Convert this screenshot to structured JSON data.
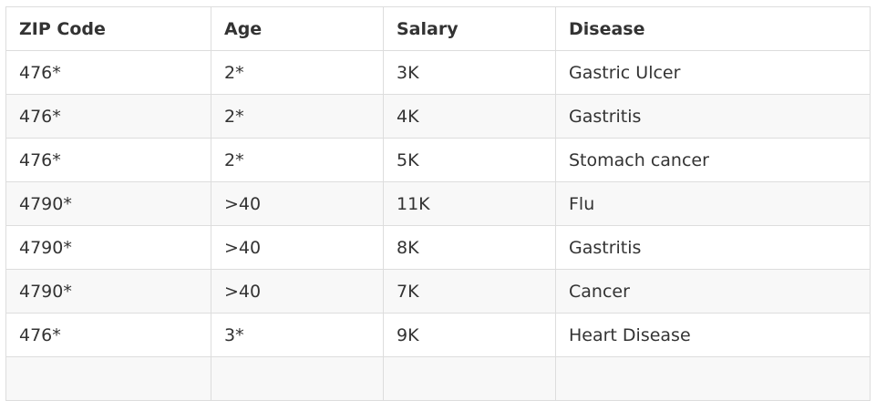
{
  "table": {
    "headers": [
      "ZIP Code",
      "Age",
      "Salary",
      "Disease"
    ],
    "rows": [
      [
        "476*",
        "2*",
        "3K",
        "Gastric Ulcer"
      ],
      [
        "476*",
        "2*",
        "4K",
        "Gastritis"
      ],
      [
        "476*",
        "2*",
        "5K",
        "Stomach cancer"
      ],
      [
        "4790*",
        ">40",
        "11K",
        "Flu"
      ],
      [
        "4790*",
        ">40",
        "8K",
        "Gastritis"
      ],
      [
        "4790*",
        ">40",
        "7K",
        "Cancer"
      ],
      [
        "476*",
        "3*",
        "9K",
        "Heart Disease"
      ],
      [
        "",
        "",
        "",
        ""
      ]
    ]
  }
}
